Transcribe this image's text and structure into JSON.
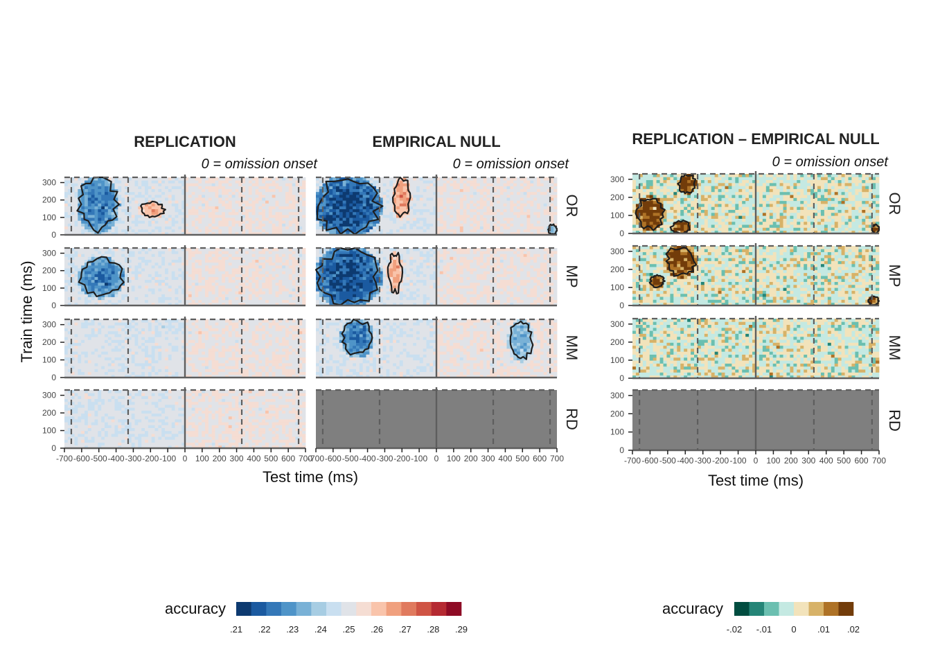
{
  "figure": {
    "colors": {
      "accuracy_scale": [
        "#0d3a70",
        "#1b5aa0",
        "#3478b8",
        "#4f94c8",
        "#79b1d6",
        "#a7cde3",
        "#c9dff0",
        "#e0e3e8",
        "#f5ddd3",
        "#f9c4ab",
        "#f0a07e",
        "#e07a5e",
        "#cf5444",
        "#b52a32",
        "#8e0b25"
      ],
      "diff_scale": [
        "#014d40",
        "#258577",
        "#6bbfb0",
        "#c4e9e2",
        "#f2e3bb",
        "#d7b268",
        "#ae7226",
        "#723c0a"
      ],
      "masked_panel": "#7f7f7f",
      "contour": "#1e1e1e",
      "frame": "#5e5e5e"
    },
    "left_block": {
      "columns": [
        {
          "title": "REPLICATION",
          "subtitle": "0 = omission onset"
        },
        {
          "title": "EMPIRICAL NULL",
          "subtitle": "0 = omission onset"
        }
      ],
      "ylabel": "Train time (ms)",
      "xlabel": "Test time (ms)"
    },
    "right_block": {
      "title": "REPLICATION – EMPIRICAL NULL",
      "subtitle": "0 = omission onset",
      "xlabel": "Test time (ms)"
    },
    "rows": [
      "OR",
      "MP",
      "MM",
      "RD"
    ],
    "x_ticks": [
      "-700",
      "-600",
      "-500",
      "-400",
      "-300",
      "-200",
      "-100",
      "0",
      "100",
      "200",
      "300",
      "400",
      "500",
      "600",
      "700"
    ],
    "y_ticks": [
      "0",
      "100",
      "200",
      "300"
    ],
    "legend_left": {
      "title": "accuracy",
      "labels": [
        ".21",
        ".22",
        ".23",
        ".24",
        ".25",
        ".26",
        ".27",
        ".28",
        ".29"
      ]
    },
    "legend_right": {
      "title": "accuracy",
      "labels": [
        "-.02",
        "-.01",
        "0",
        ".01",
        ".02"
      ]
    }
  },
  "chart_data": [
    {
      "type": "heatmap",
      "title": "REPLICATION",
      "subtitle": "0 = omission onset",
      "facets": [
        "OR",
        "MP",
        "MM",
        "RD"
      ],
      "xlabel": "Test time (ms)",
      "ylabel": "Train time (ms)",
      "xlim": [
        -700,
        700
      ],
      "ylim": [
        0,
        330
      ],
      "vertical_lines": {
        "solid": [
          0
        ],
        "dashed": [
          -660,
          -330,
          330,
          660
        ]
      },
      "horizontal_lines": {
        "dashed": [
          330
        ]
      },
      "value_range": [
        0.21,
        0.29
      ],
      "value_baseline": 0.25,
      "significant_clusters": {
        "OR": [
          {
            "sign": "below",
            "peak_value": 0.225,
            "x_range": [
              -620,
              -390
            ],
            "y_range": [
              20,
              330
            ]
          },
          {
            "sign": "above",
            "peak_value": 0.265,
            "x_range": [
              -260,
              -120
            ],
            "y_range": [
              100,
              190
            ]
          }
        ],
        "MP": [
          {
            "sign": "below",
            "peak_value": 0.225,
            "x_range": [
              -610,
              -360
            ],
            "y_range": [
              50,
              270
            ]
          }
        ],
        "MM": [],
        "RD": []
      }
    },
    {
      "type": "heatmap",
      "title": "EMPIRICAL NULL",
      "subtitle": "0 = omission onset",
      "facets": [
        "OR",
        "MP",
        "MM",
        "RD"
      ],
      "xlabel": "Test time (ms)",
      "ylabel": "Train time (ms)",
      "xlim": [
        -700,
        700
      ],
      "ylim": [
        0,
        330
      ],
      "vertical_lines": {
        "solid": [
          0
        ],
        "dashed": [
          -660,
          -330,
          330,
          660
        ]
      },
      "horizontal_lines": {
        "dashed": [
          330
        ]
      },
      "value_range": [
        0.21,
        0.29
      ],
      "value_baseline": 0.25,
      "masked_facets": [
        "RD"
      ],
      "significant_clusters": {
        "OR": [
          {
            "sign": "below",
            "peak_value": 0.215,
            "x_range": [
              -700,
              -330
            ],
            "y_range": [
              0,
              330
            ]
          },
          {
            "sign": "above",
            "peak_value": 0.27,
            "x_range": [
              -250,
              -150
            ],
            "y_range": [
              100,
              330
            ]
          },
          {
            "sign": "below",
            "peak_value": 0.235,
            "x_range": [
              650,
              700
            ],
            "y_range": [
              0,
              60
            ]
          }
        ],
        "MP": [
          {
            "sign": "below",
            "peak_value": 0.215,
            "x_range": [
              -700,
              -330
            ],
            "y_range": [
              0,
              330
            ]
          },
          {
            "sign": "above",
            "peak_value": 0.265,
            "x_range": [
              -280,
              -200
            ],
            "y_range": [
              70,
              310
            ]
          }
        ],
        "MM": [
          {
            "sign": "below",
            "peak_value": 0.225,
            "x_range": [
              -550,
              -370
            ],
            "y_range": [
              120,
              330
            ]
          },
          {
            "sign": "below",
            "peak_value": 0.23,
            "x_range": [
              420,
              560
            ],
            "y_range": [
              100,
              320
            ]
          }
        ],
        "RD": []
      }
    },
    {
      "type": "heatmap",
      "title": "REPLICATION – EMPIRICAL NULL",
      "subtitle": "0 = omission onset",
      "facets": [
        "OR",
        "MP",
        "MM",
        "RD"
      ],
      "xlabel": "Test time (ms)",
      "xlim": [
        -700,
        700
      ],
      "ylim": [
        0,
        330
      ],
      "vertical_lines": {
        "solid": [
          0
        ],
        "dashed": [
          -660,
          -330,
          330,
          660
        ]
      },
      "horizontal_lines": {
        "dashed": [
          330
        ]
      },
      "value_range": [
        -0.02,
        0.02
      ],
      "value_baseline": 0,
      "masked_facets": [
        "RD"
      ],
      "significant_clusters": {
        "OR": [
          {
            "sign": "above",
            "peak_value": 0.02,
            "x_range": [
              -680,
              -520
            ],
            "y_range": [
              20,
              200
            ]
          },
          {
            "sign": "above",
            "peak_value": 0.02,
            "x_range": [
              -440,
              -340
            ],
            "y_range": [
              220,
              330
            ]
          },
          {
            "sign": "above",
            "peak_value": 0.02,
            "x_range": [
              -480,
              -370
            ],
            "y_range": [
              0,
              70
            ]
          },
          {
            "sign": "above",
            "peak_value": 0.02,
            "x_range": [
              660,
              700
            ],
            "y_range": [
              0,
              50
            ]
          }
        ],
        "MP": [
          {
            "sign": "above",
            "peak_value": 0.02,
            "x_range": [
              -600,
              -520
            ],
            "y_range": [
              100,
              170
            ]
          },
          {
            "sign": "above",
            "peak_value": 0.02,
            "x_range": [
              -510,
              -340
            ],
            "y_range": [
              160,
              330
            ]
          },
          {
            "sign": "above",
            "peak_value": 0.02,
            "x_range": [
              640,
              700
            ],
            "y_range": [
              0,
              50
            ]
          }
        ],
        "MM": [],
        "RD": []
      }
    }
  ]
}
